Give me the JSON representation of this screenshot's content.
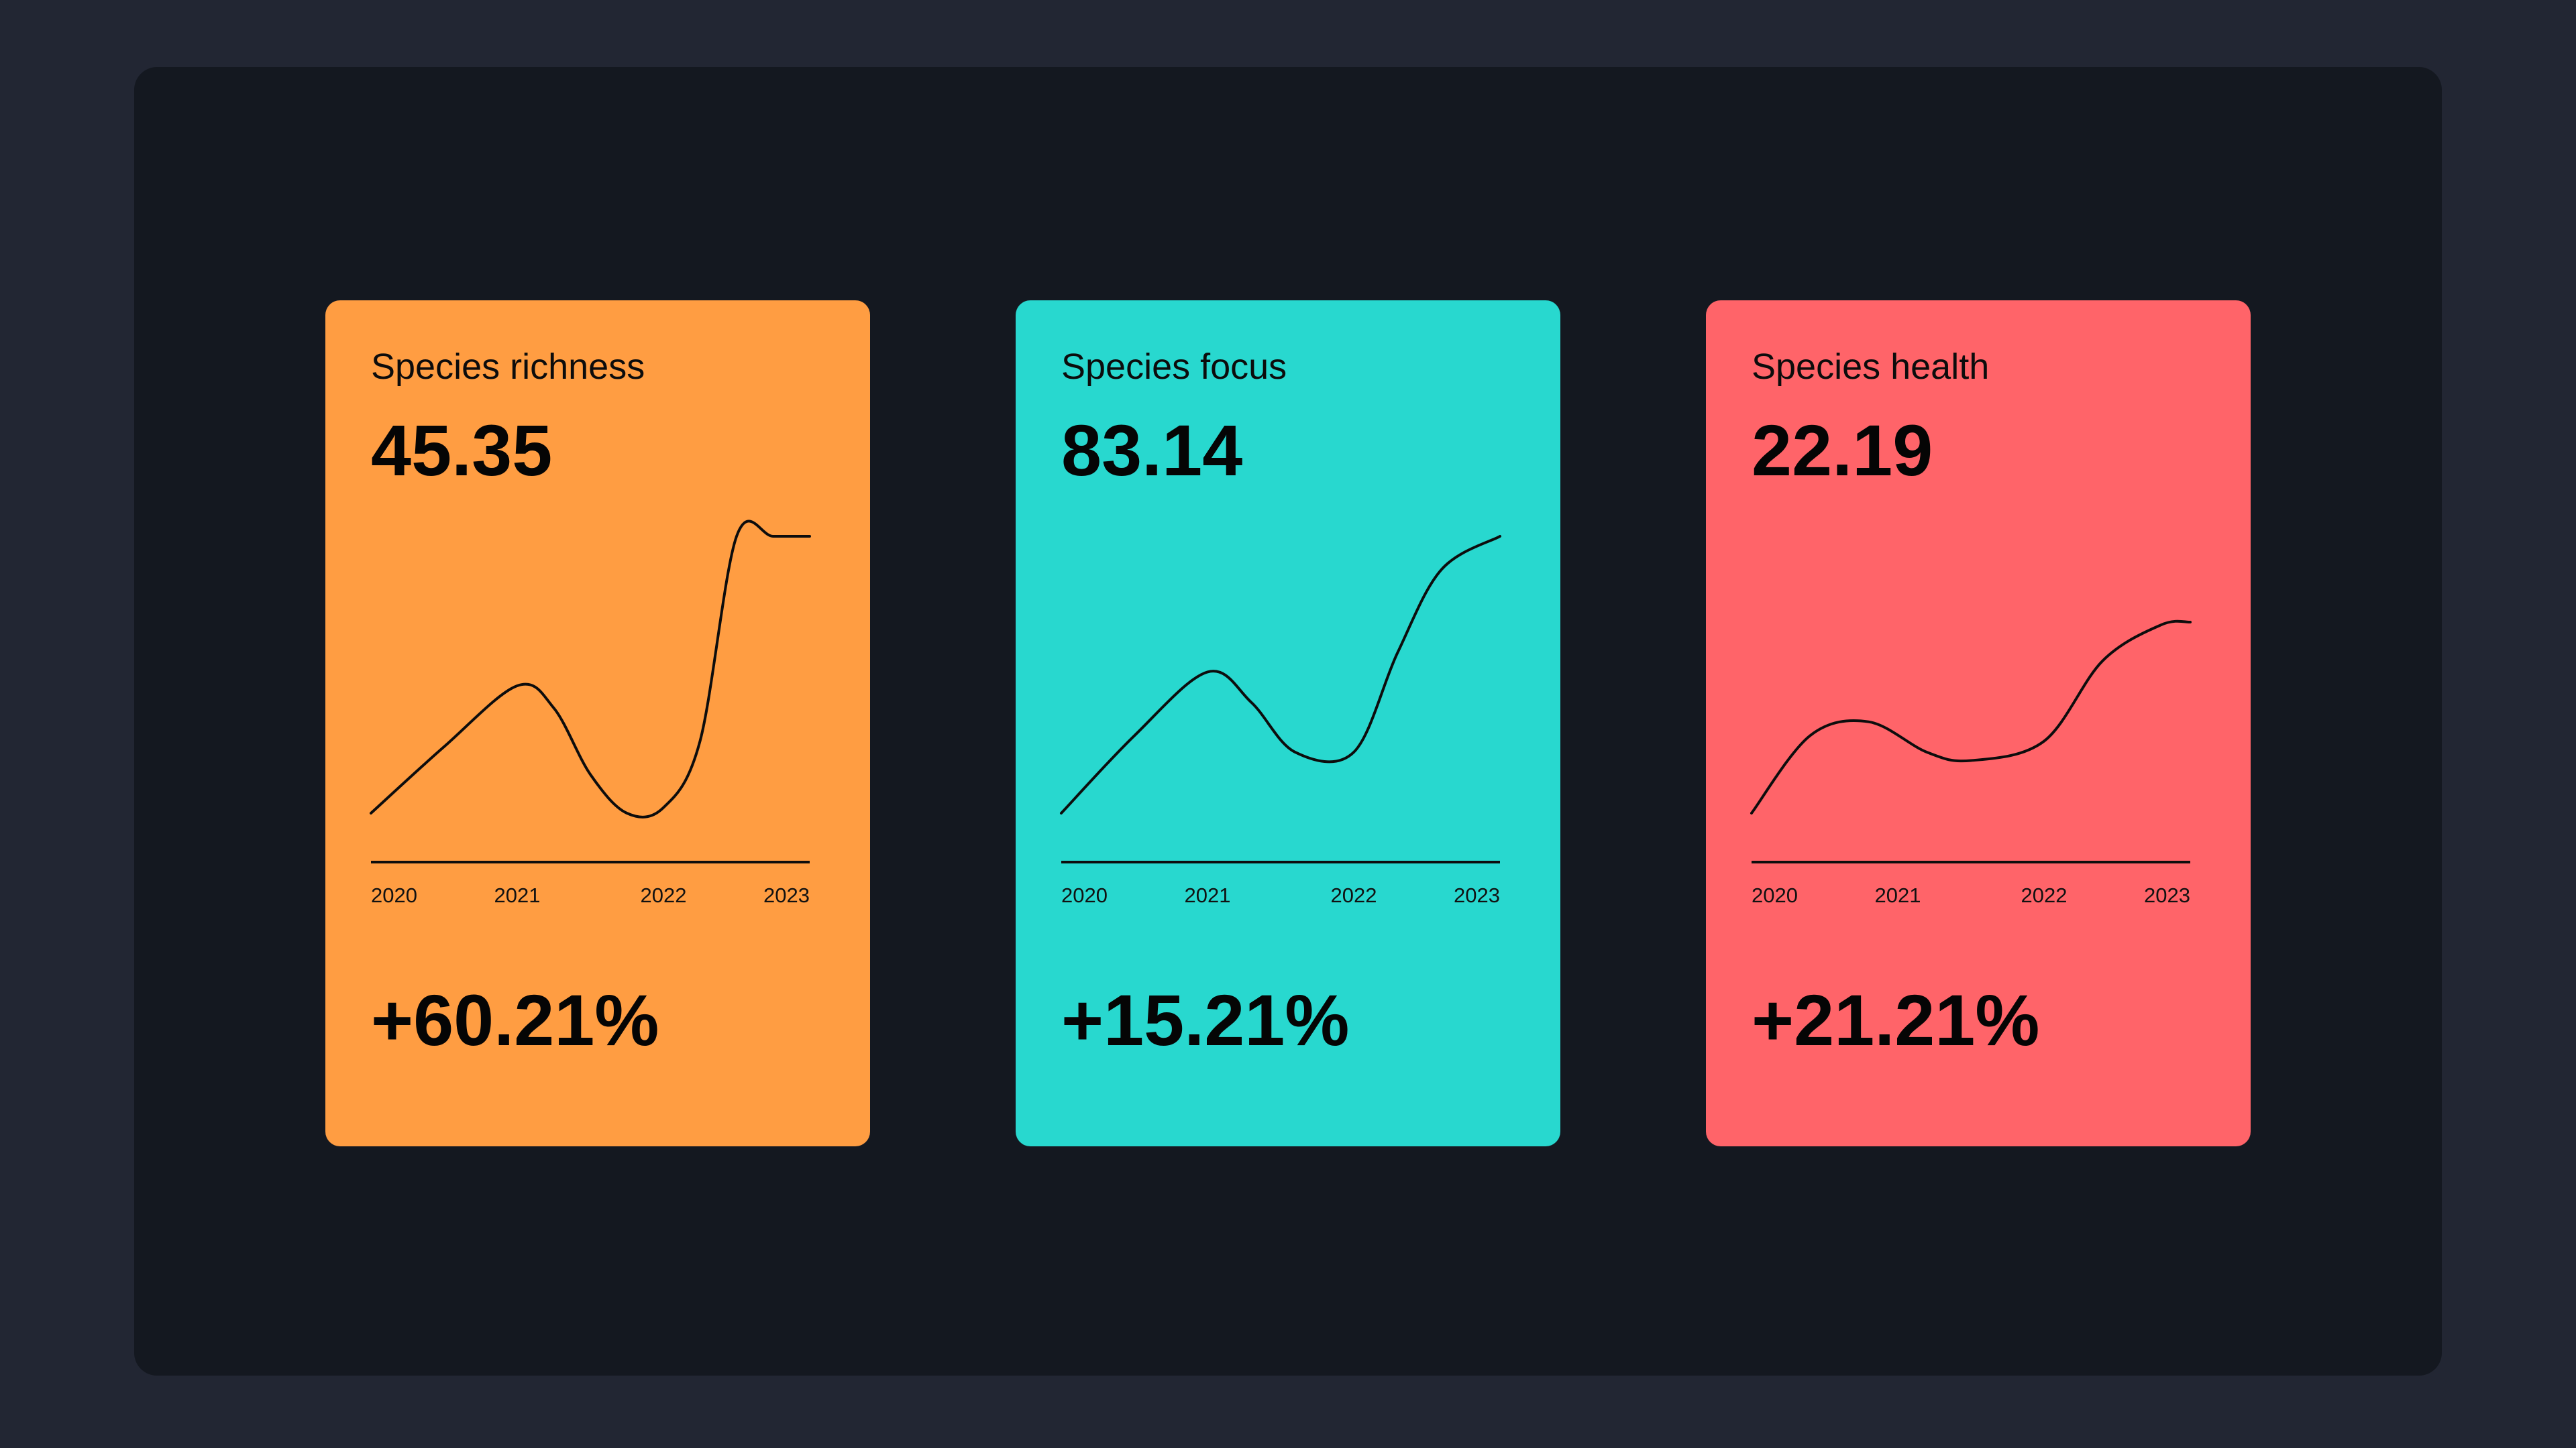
{
  "cards": [
    {
      "title": "Species richness",
      "value": "45.35",
      "change": "+60.21%",
      "color": "#ff9d42"
    },
    {
      "title": "Species focus",
      "value": "83.14",
      "change": "+15.21%",
      "color": "#28d8cf"
    },
    {
      "title": "Species health",
      "value": "22.19",
      "change": "+21.21%",
      "color": "#ff6469"
    }
  ],
  "chart_data": [
    {
      "type": "line",
      "title": "Species richness",
      "x": [
        2020,
        2020.5,
        2021,
        2021.25,
        2021.5,
        2021.75,
        2022,
        2022.25,
        2022.5,
        2022.75,
        2023
      ],
      "series": [
        {
          "values": [
            0,
            24,
            46,
            38,
            14,
            0,
            2,
            26,
            100,
            100,
            100
          ]
        }
      ],
      "x_ticks": [
        "2020",
        "2021",
        "2022",
        "2023"
      ],
      "grid": false,
      "ylim": [
        0,
        100
      ]
    },
    {
      "type": "line",
      "title": "Species focus",
      "x": [
        2020,
        2020.5,
        2021,
        2021.3,
        2021.6,
        2022,
        2022.3,
        2022.6,
        2023
      ],
      "series": [
        {
          "values": [
            0,
            28,
            51,
            40,
            22,
            22,
            58,
            88,
            100
          ]
        }
      ],
      "x_ticks": [
        "2020",
        "2021",
        "2022",
        "2023"
      ],
      "grid": false,
      "ylim": [
        0,
        100
      ]
    },
    {
      "type": "line",
      "title": "Species health",
      "x": [
        2020,
        2020.4,
        2020.8,
        2021.2,
        2021.5,
        2022,
        2022.4,
        2022.8,
        2023
      ],
      "series": [
        {
          "values": [
            0,
            28,
            33,
            22,
            19,
            26,
            55,
            68,
            69
          ]
        }
      ],
      "x_ticks": [
        "2020",
        "2021",
        "2022",
        "2023"
      ],
      "grid": false,
      "ylim": [
        0,
        100
      ]
    }
  ]
}
